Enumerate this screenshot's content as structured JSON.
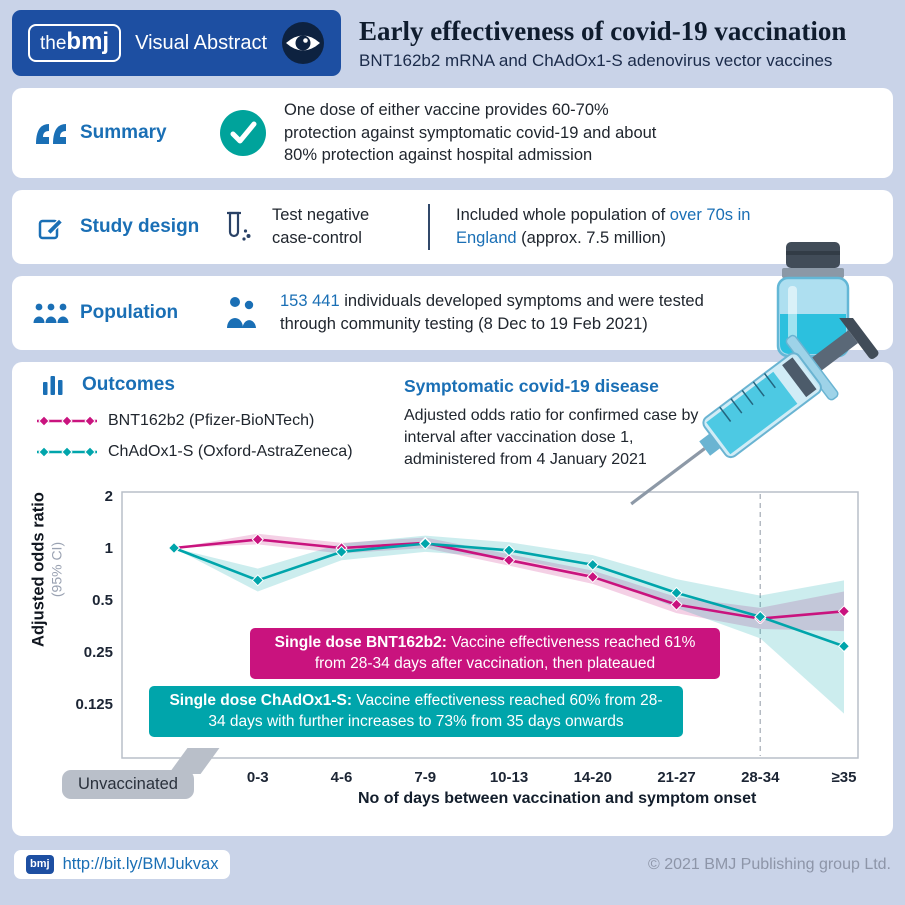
{
  "header": {
    "logo_the": "the",
    "logo_bmj": "bmj",
    "brand": "Visual Abstract",
    "title": "Early effectiveness of covid-19 vaccination",
    "subtitle": "BNT162b2 mRNA and ChAdOx1-S adenovirus vector vaccines"
  },
  "summary": {
    "label": "Summary",
    "text": "One dose of either vaccine provides 60-70% protection against symptomatic covid-19 and about 80% protection against hospital admission"
  },
  "study_design": {
    "label": "Study design",
    "method_line1": "Test negative",
    "method_line2": "case-control",
    "desc_prefix": "Included whole population of ",
    "desc_highlight": "over 70s in England",
    "desc_suffix": " (approx. 7.5 million)"
  },
  "population": {
    "label": "Population",
    "count": "153 441",
    "text_after": " individuals developed symptoms and were tested through community testing (8 Dec to 19 Feb 2021)"
  },
  "outcomes": {
    "label": "Outcomes",
    "subtitle": "Symptomatic covid-19 disease",
    "description": "Adjusted odds ratio for confirmed case by interval after vaccination dose 1, administered from 4 January 2021",
    "callout_pink_bold": "Single dose BNT162b2:",
    "callout_pink_text": " Vaccine effectiveness reached 61% from 28-34 days after vaccination, then plateaued",
    "callout_teal_bold": "Single dose ChAdOx1-S:",
    "callout_teal_text": " Vaccine effectiveness reached 60% from 28-34 days with further increases to 73% from 35 days onwards",
    "unvaccinated_label": "Unvaccinated"
  },
  "chart_data": {
    "type": "line",
    "title": "Symptomatic covid-19 disease",
    "ylabel": "Adjusted odds ratio",
    "ylabel_sub": "(95% CI)",
    "xlabel": "No of days between vaccination and symptom onset",
    "y_scale": "log2",
    "ylim": [
      0.1,
      2.2
    ],
    "y_ticks": [
      2,
      1,
      0.5,
      0.25,
      0.125
    ],
    "grid": false,
    "legend_position": "top-left",
    "categories": [
      "Unvaccinated",
      "0-3",
      "4-6",
      "7-9",
      "10-13",
      "14-20",
      "21-27",
      "28-34",
      "≥35"
    ],
    "dashed_line_at": "28-34",
    "series": [
      {
        "name": "BNT162b2 (Pfizer-BioNTech)",
        "color": "#c9137e",
        "values": [
          1.0,
          1.12,
          1.0,
          1.07,
          0.85,
          0.68,
          0.47,
          0.39,
          0.43
        ],
        "lower": [
          1.0,
          1.05,
          0.93,
          1.0,
          0.79,
          0.62,
          0.42,
          0.34,
          0.33
        ],
        "upper": [
          1.0,
          1.21,
          1.07,
          1.15,
          0.92,
          0.74,
          0.52,
          0.45,
          0.56
        ]
      },
      {
        "name": "ChAdOx1-S (Oxford-AstraZeneca)",
        "color": "#00a5ab",
        "values": [
          1.0,
          0.65,
          0.95,
          1.06,
          0.97,
          0.8,
          0.55,
          0.4,
          0.27
        ],
        "lower": [
          1.0,
          0.56,
          0.85,
          0.95,
          0.88,
          0.7,
          0.45,
          0.3,
          0.11
        ],
        "upper": [
          1.0,
          0.76,
          1.06,
          1.18,
          1.08,
          0.91,
          0.66,
          0.53,
          0.65
        ]
      }
    ]
  },
  "footer": {
    "logo": "bmj",
    "link": "http://bit.ly/BMJukvax",
    "copyright": "© 2021 BMJ Publishing group Ltd."
  },
  "colors": {
    "background": "#c9d3e8",
    "brand_blue": "#1d4fa2",
    "heading_blue": "#1a6fb5",
    "teal": "#00a5ab",
    "pink": "#c9137e",
    "check_teal": "#00a39b"
  },
  "icons": {
    "header": "eye-icon",
    "summary": "quote-icon",
    "summary_badge": "check-circle-icon",
    "study_design": "pencil-icon",
    "study_method": "test-tube-icon",
    "population": "people-icon",
    "outcomes": "bar-chart-icon",
    "footer": "bmj-mini-logo"
  }
}
